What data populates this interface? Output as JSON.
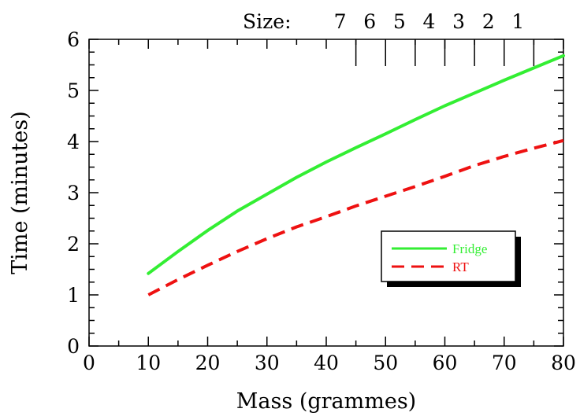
{
  "chart_data": {
    "type": "line",
    "title": "",
    "xlabel": "Mass (grammes)",
    "ylabel": "Time (minutes)",
    "xlim": [
      0,
      80
    ],
    "ylim": [
      0,
      6
    ],
    "x_ticks": [
      "0",
      "10",
      "20",
      "30",
      "40",
      "50",
      "60",
      "70",
      "80"
    ],
    "y_ticks": [
      "0",
      "1",
      "2",
      "3",
      "4",
      "5",
      "6"
    ],
    "grid": false,
    "legend_position": "bottom-right",
    "series": [
      {
        "name": "Fridge",
        "color": "#33ee33",
        "style": "solid",
        "x": [
          10,
          15,
          20,
          25,
          30,
          35,
          40,
          45,
          50,
          55,
          60,
          65,
          70,
          75,
          80
        ],
        "y": [
          1.42,
          1.85,
          2.26,
          2.64,
          2.97,
          3.3,
          3.6,
          3.88,
          4.15,
          4.43,
          4.7,
          4.95,
          5.2,
          5.44,
          5.68
        ]
      },
      {
        "name": "RT",
        "color": "#ee1111",
        "style": "dashed",
        "x": [
          10,
          15,
          20,
          25,
          30,
          35,
          40,
          45,
          50,
          55,
          60,
          65,
          70,
          75,
          80
        ],
        "y": [
          1.0,
          1.3,
          1.58,
          1.85,
          2.1,
          2.33,
          2.53,
          2.74,
          2.93,
          3.12,
          3.32,
          3.53,
          3.71,
          3.87,
          4.02
        ]
      }
    ],
    "secondary_axis": {
      "label": "Size:",
      "ticks": [
        {
          "label": "7",
          "x": 45
        },
        {
          "label": "6",
          "x": 50
        },
        {
          "label": "5",
          "x": 55
        },
        {
          "label": "4",
          "x": 60
        },
        {
          "label": "3",
          "x": 65
        },
        {
          "label": "2",
          "x": 70
        },
        {
          "label": "1",
          "x": 75
        }
      ]
    }
  }
}
